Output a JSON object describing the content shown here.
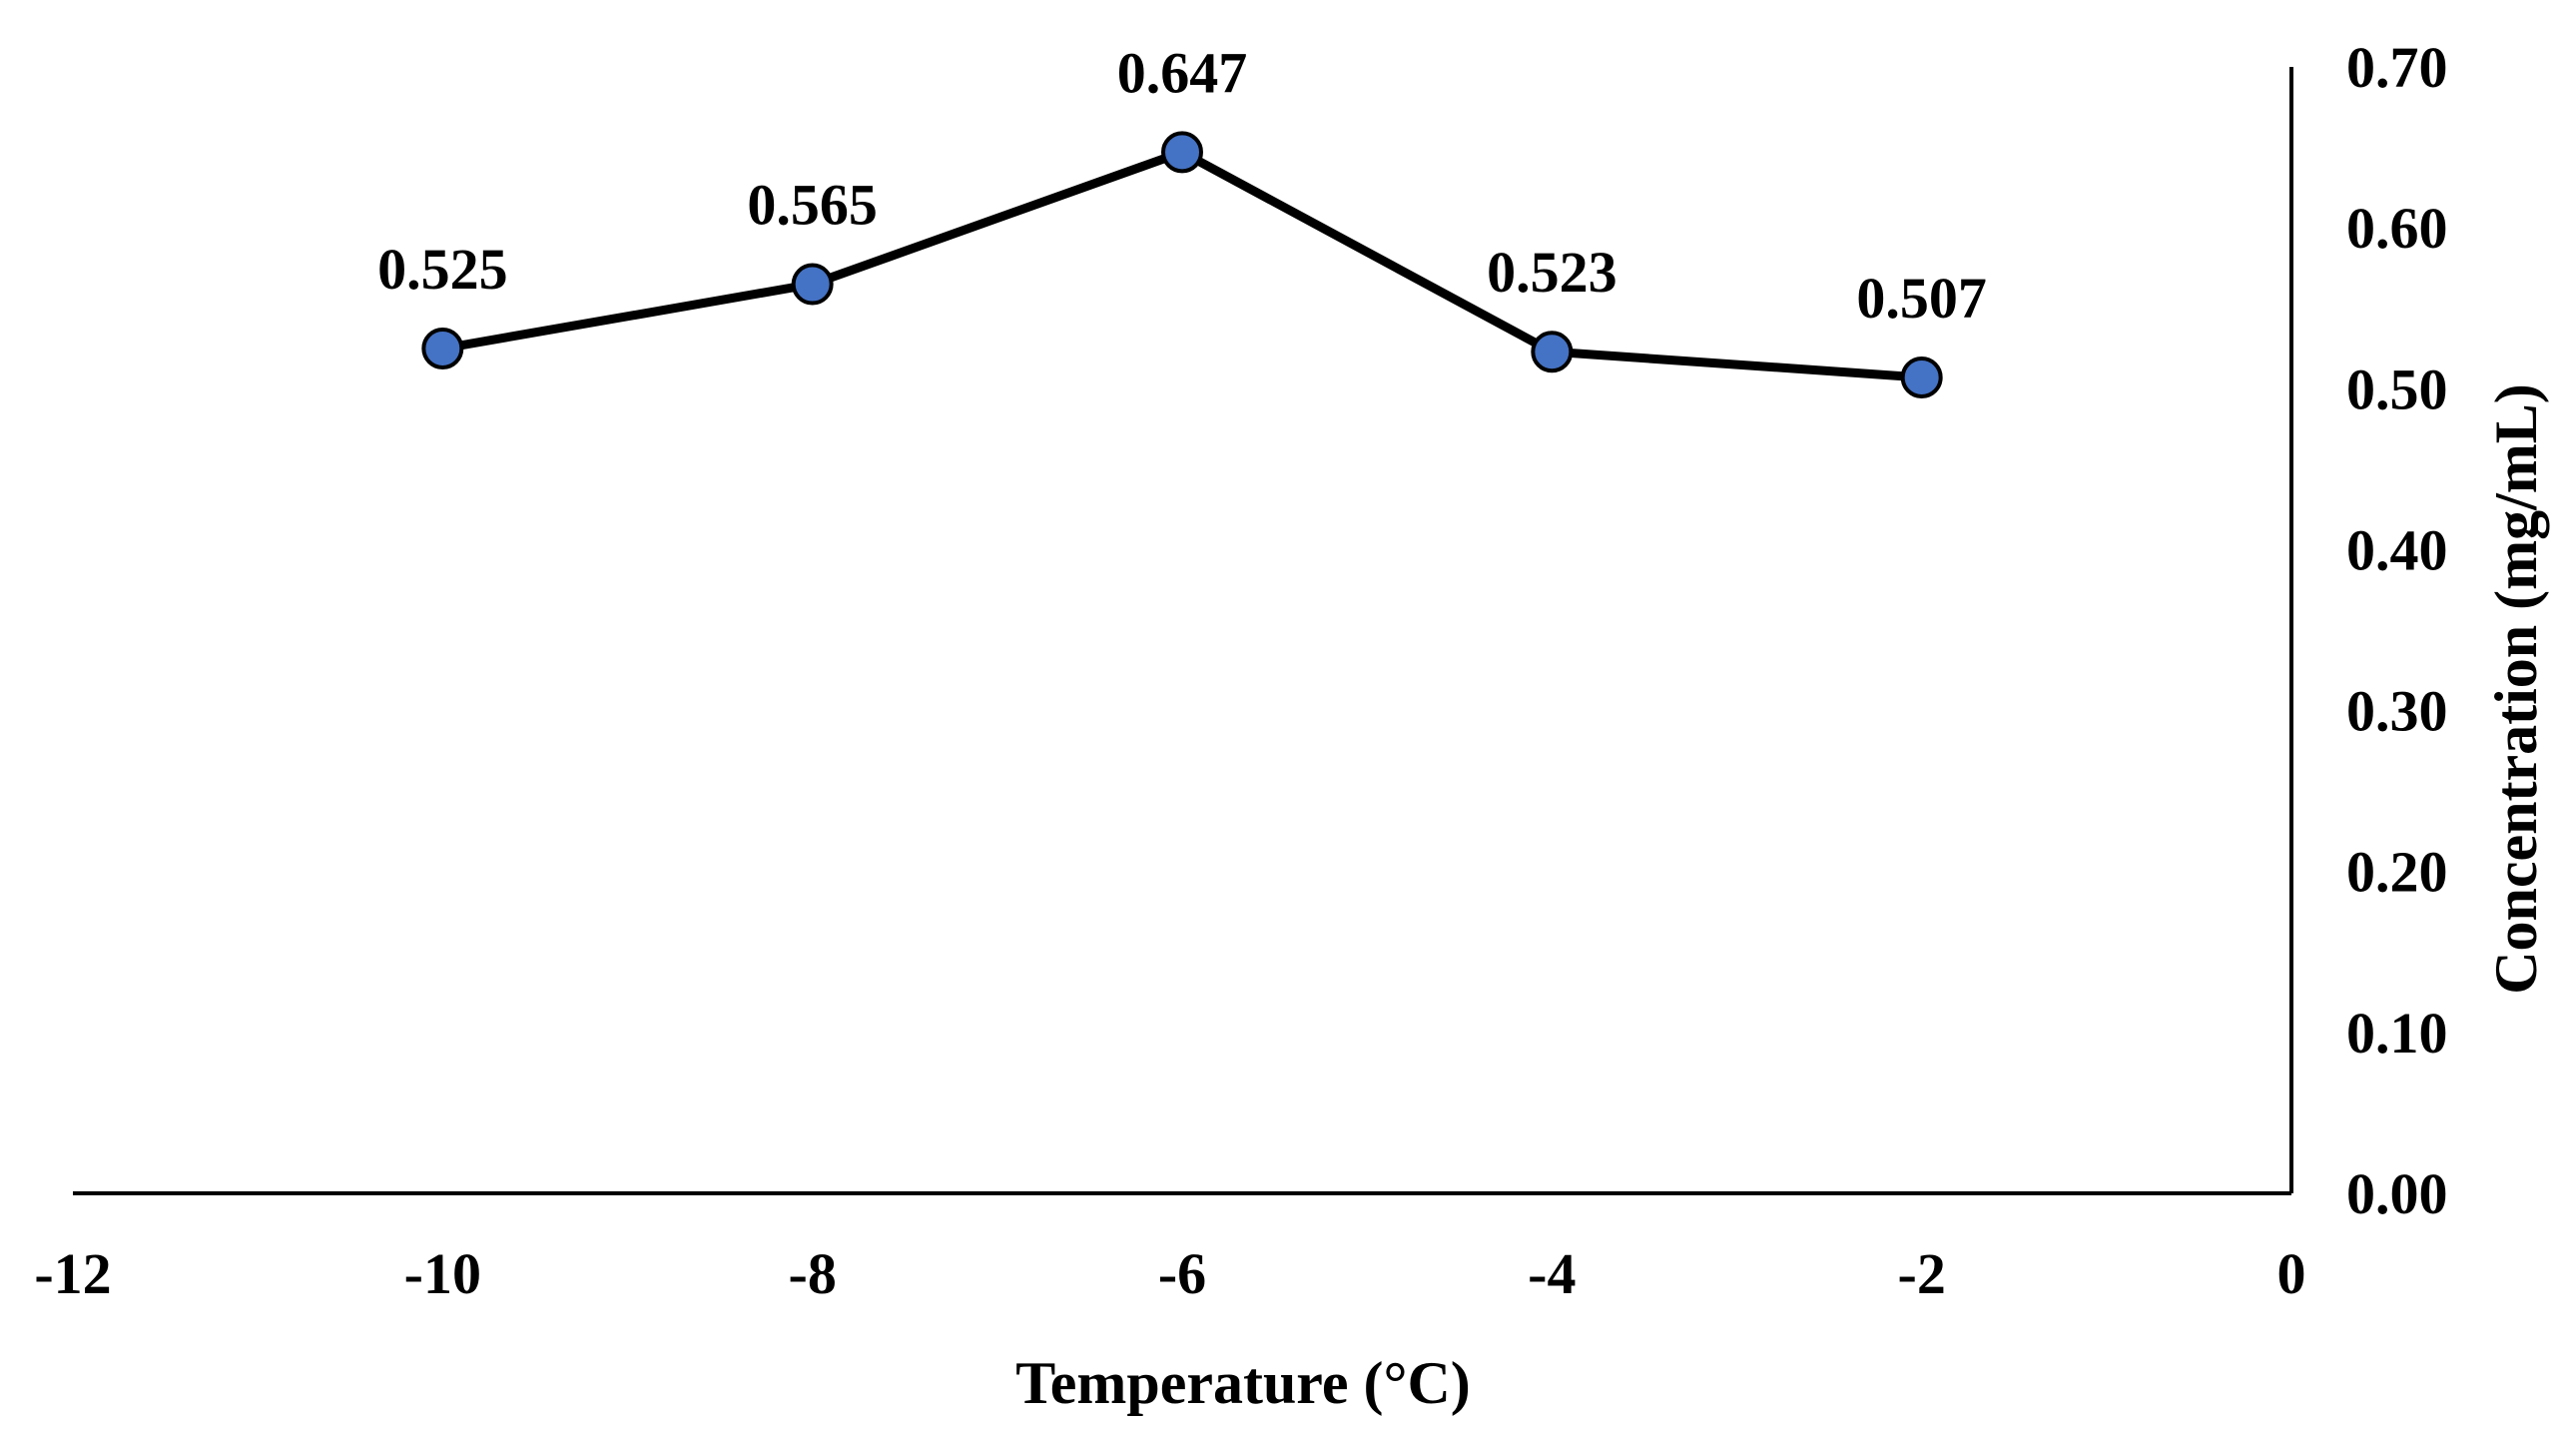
{
  "chart_data": {
    "type": "line",
    "title": "",
    "xlabel": "Temperature (°C)",
    "ylabel": "Concentration (mg/mL)",
    "y_axis_side": "right",
    "xlim": [
      -12,
      0
    ],
    "ylim": [
      0,
      0.7
    ],
    "x_ticks": [
      -12,
      -10,
      -8,
      -6,
      -4,
      -2,
      0
    ],
    "x_tick_labels": [
      "-12",
      "-10",
      "-8",
      "-6",
      "-4",
      "-2",
      "0"
    ],
    "y_ticks": [
      0,
      0.1,
      0.2,
      0.3,
      0.4,
      0.5,
      0.6,
      0.7
    ],
    "y_tick_labels": [
      "0.00",
      "0.10",
      "0.20",
      "0.30",
      "0.40",
      "0.50",
      "0.60",
      "0.70"
    ],
    "grid": false,
    "legend": "none",
    "series": [
      {
        "name": "Concentration",
        "x": [
          -10,
          -8,
          -6,
          -4,
          -2
        ],
        "values": [
          0.525,
          0.565,
          0.647,
          0.523,
          0.507
        ],
        "data_labels": [
          "0.525",
          "0.565",
          "0.647",
          "0.523",
          "0.507"
        ],
        "line_color": "#000000",
        "marker_color": "#4472C4"
      }
    ]
  }
}
